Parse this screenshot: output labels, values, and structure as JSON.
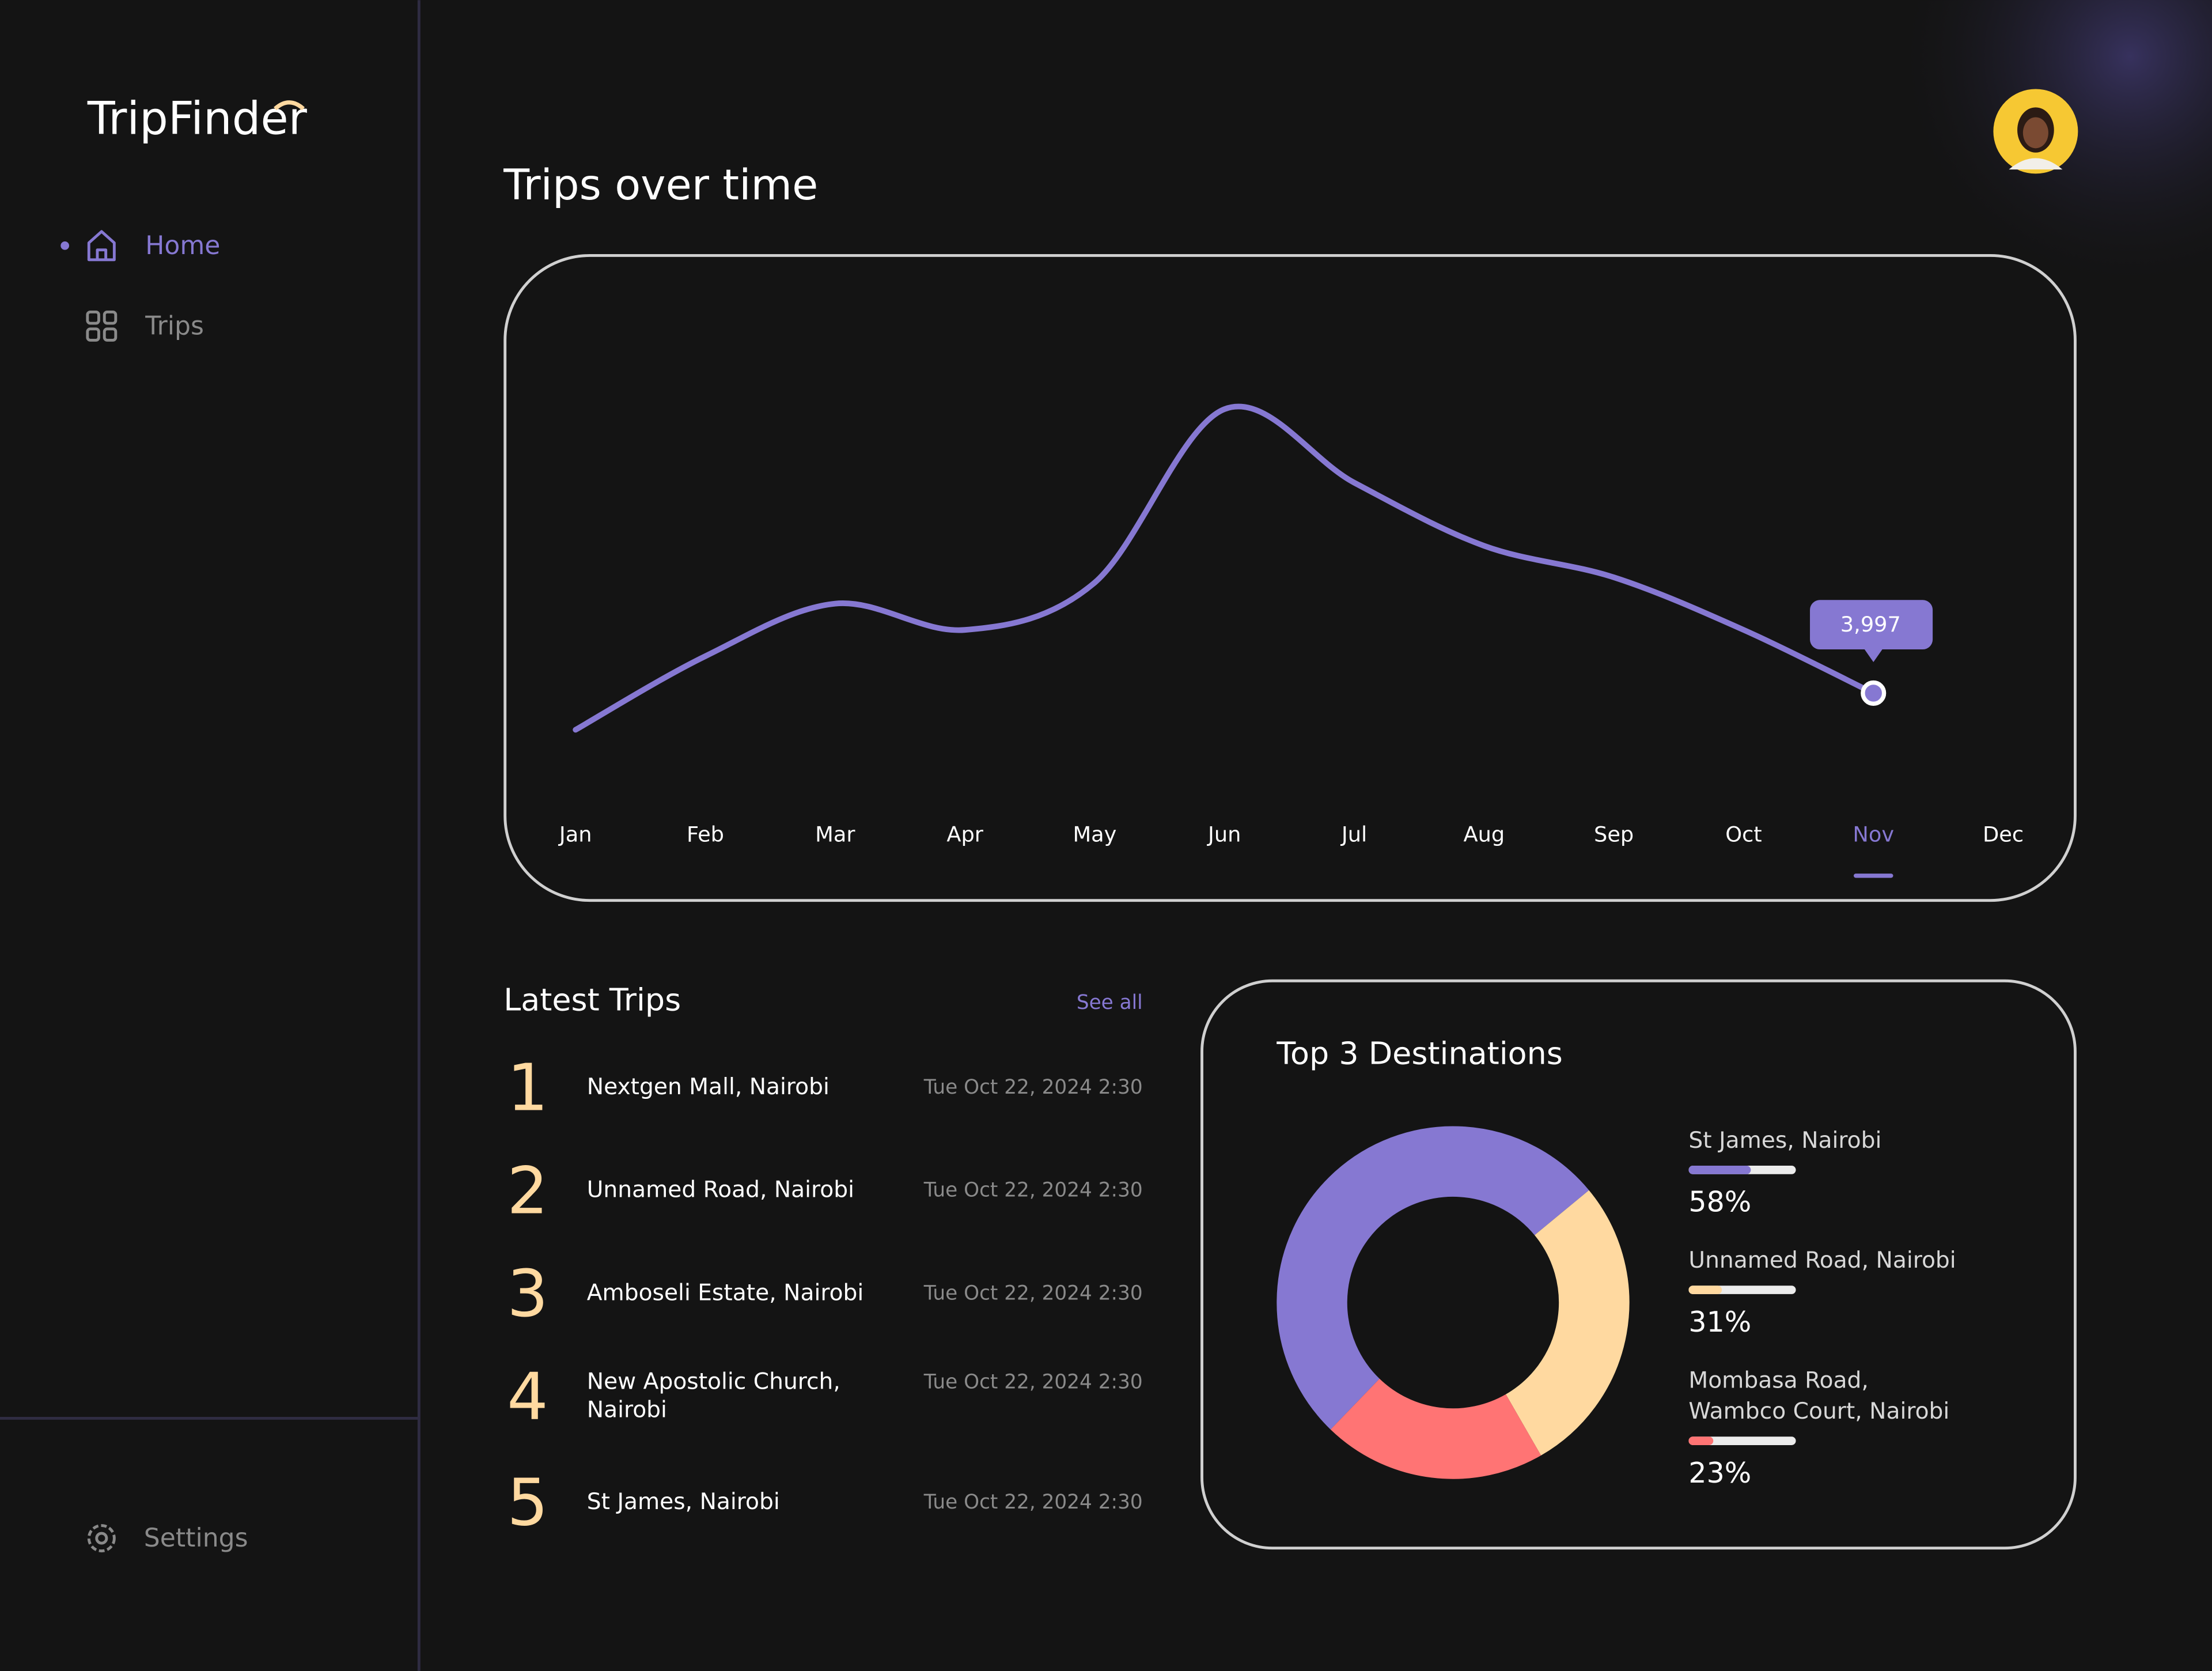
{
  "brand": "TripFinder",
  "nav": [
    {
      "label": "Home",
      "active": true
    },
    {
      "label": "Trips",
      "active": false
    }
  ],
  "settings": "Settings",
  "chart_data": [
    {
      "type": "line",
      "title": "Trips over time",
      "categories": [
        "Jan",
        "Feb",
        "Mar",
        "Apr",
        "May",
        "Jun",
        "Jul",
        "Aug",
        "Sep",
        "Oct",
        "Nov",
        "Dec"
      ],
      "values": [
        3300,
        4700,
        5700,
        5200,
        6100,
        9400,
        8000,
        6800,
        6200,
        5200,
        3997,
        null
      ],
      "value_labels": {
        "10": "3,997"
      },
      "selected": 10,
      "color": "#8678d2",
      "ylim": [
        0,
        12000
      ]
    },
    {
      "type": "donut",
      "title": "Top 3 Destinations",
      "series": [
        {
          "name_lines": [
            "St James, Nairobi"
          ],
          "value": 58,
          "value_label": "58%",
          "color": "#8678d2"
        },
        {
          "name_lines": [
            "Unnamed Road, Nairobi"
          ],
          "value": 31,
          "value_label": "31%",
          "color": "#ffd9a0"
        },
        {
          "name_lines": [
            "Mombasa Road,",
            "Wambco Court, Nairobi"
          ],
          "value": 23,
          "value_label": "23%",
          "color": "#ff7474"
        }
      ]
    }
  ],
  "latest_trips": {
    "title": "Latest Trips",
    "see_all": "See all",
    "rows": [
      {
        "rank": 1,
        "place_lines": [
          "Nextgen Mall, Nairobi"
        ],
        "time": "Tue Oct 22, 2024 2:30"
      },
      {
        "rank": 2,
        "place_lines": [
          "Unnamed Road, Nairobi"
        ],
        "time": "Tue Oct 22, 2024 2:30"
      },
      {
        "rank": 3,
        "place_lines": [
          "Amboseli Estate, Nairobi"
        ],
        "time": "Tue Oct 22, 2024 2:30"
      },
      {
        "rank": 4,
        "place_lines": [
          "New Apostolic Church,",
          "Nairobi"
        ],
        "time": "Tue Oct 22, 2024 2:30"
      },
      {
        "rank": 5,
        "place_lines": [
          "St James, Nairobi"
        ],
        "time": "Tue Oct 22, 2024 2:30"
      }
    ]
  }
}
